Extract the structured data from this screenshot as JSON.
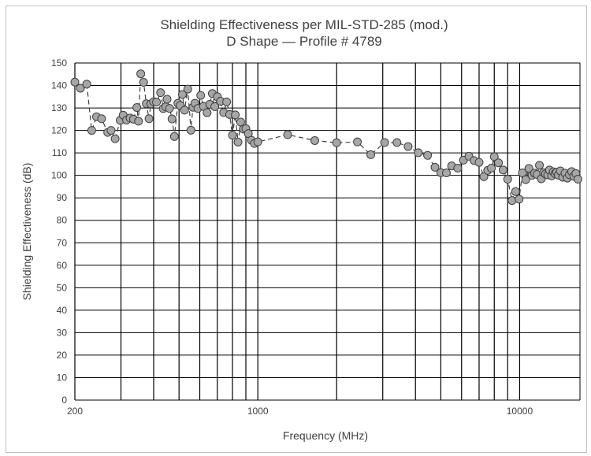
{
  "chart_data": {
    "type": "scatter",
    "title": "Shielding Effectiveness per MIL-STD-285 (mod.)",
    "subtitle": "D Shape — Profile # 4789",
    "xlabel": "Frequency (MHz)",
    "ylabel": "Shielding Effectiveness (dB)",
    "x_scale": "log",
    "xlim": [
      200,
      17000
    ],
    "ylim": [
      0,
      150
    ],
    "y_ticks": [
      0,
      10,
      20,
      30,
      40,
      50,
      60,
      70,
      80,
      90,
      100,
      110,
      120,
      130,
      140,
      150
    ],
    "x_tick_labels": [
      {
        "value": 200,
        "label": "200"
      },
      {
        "value": 1000,
        "label": "1000"
      },
      {
        "value": 10000,
        "label": "10000"
      }
    ],
    "x_gridlines": [
      200,
      300,
      400,
      500,
      600,
      700,
      800,
      900,
      1000,
      2000,
      3000,
      4000,
      5000,
      6000,
      7000,
      8000,
      9000,
      10000
    ],
    "grid": true,
    "line_style": "dashed",
    "marker": "circle",
    "colors": {
      "marker_fill": "#a6a6a6",
      "marker_stroke": "#404040",
      "line": "#404040",
      "grid": "#000000",
      "frame": "#bfbfbf"
    },
    "x": [
      200,
      210,
      222,
      232,
      242,
      253,
      267,
      275,
      285,
      298,
      306,
      315,
      325,
      335,
      345,
      350,
      357,
      366,
      375,
      384,
      390,
      400,
      410,
      425,
      435,
      445,
      450,
      460,
      470,
      480,
      495,
      505,
      515,
      525,
      540,
      555,
      565,
      575,
      590,
      605,
      620,
      640,
      655,
      670,
      685,
      700,
      720,
      740,
      760,
      780,
      800,
      820,
      840,
      860,
      880,
      900,
      920,
      945,
      970,
      1000,
      1300,
      1650,
      2000,
      2400,
      2700,
      3050,
      3400,
      3750,
      4100,
      4450,
      4750,
      5000,
      5250,
      5500,
      5800,
      6100,
      6400,
      6700,
      7000,
      7300,
      7550,
      7800,
      8000,
      8300,
      8650,
      9000,
      9350,
      9650,
      9950,
      10250,
      10550,
      10850,
      11150,
      11400,
      11650,
      11900,
      12100,
      12350,
      12550,
      12800,
      13000,
      13250,
      13450,
      13650,
      13850,
      14050,
      14300,
      14600,
      14900,
      15200,
      15500,
      15800,
      16100,
      16400,
      16700
    ],
    "y": [
      141.5,
      138.8,
      140.6,
      120.0,
      126.1,
      125.2,
      119.1,
      120.0,
      116.3,
      124.5,
      126.8,
      124.6,
      125.5,
      125.0,
      130.2,
      124.1,
      145.2,
      141.4,
      131.9,
      125.2,
      131.8,
      132.8,
      132.6,
      136.8,
      129.7,
      130.5,
      133.9,
      129.8,
      125.1,
      117.3,
      132.1,
      131.1,
      136.0,
      129.0,
      138.4,
      120.1,
      130.3,
      132.1,
      129.8,
      135.6,
      130.7,
      127.9,
      131.6,
      136.4,
      130.6,
      135.0,
      133.0,
      128.0,
      132.7,
      127.1,
      117.9,
      126.9,
      114.8,
      123.7,
      120.6,
      120.8,
      118.6,
      115.6,
      114.2,
      114.9,
      118.1,
      115.5,
      114.5,
      114.9,
      109.2,
      114.6,
      114.6,
      112.8,
      110.1,
      108.9,
      103.6,
      101.2,
      101.1,
      104.2,
      103.2,
      106.8,
      108.5,
      106.6,
      105.8,
      99.4,
      102.2,
      103.2,
      108.3,
      105.6,
      102.4,
      98.3,
      88.8,
      92.8,
      89.4,
      101.1,
      98.1,
      103.1,
      100.0,
      101.0,
      100.4,
      104.5,
      98.5,
      101.2,
      100.6,
      100.2,
      102.4,
      99.8,
      101.6,
      100.8,
      101.4,
      100.1,
      102.0,
      99.2,
      101.0,
      98.8,
      100.3,
      101.7,
      99.6,
      100.8,
      98.3
    ]
  }
}
